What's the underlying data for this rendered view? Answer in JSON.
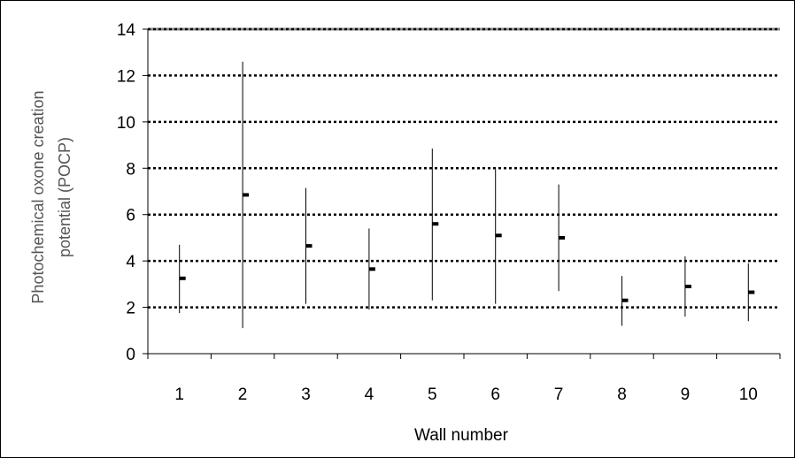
{
  "chart_data": {
    "type": "range",
    "title": "",
    "xlabel": "Wall number",
    "ylabel": [
      "Photochemical oxone creation",
      "potential (POCP)"
    ],
    "categories": [
      "1",
      "2",
      "3",
      "4",
      "5",
      "6",
      "7",
      "8",
      "9",
      "10"
    ],
    "series": [
      {
        "mean": [
          3.25,
          6.85,
          4.65,
          3.65,
          5.6,
          5.1,
          5.0,
          2.3,
          2.9,
          2.65
        ],
        "min": [
          1.75,
          1.1,
          2.15,
          1.9,
          2.3,
          2.15,
          2.7,
          1.2,
          1.6,
          1.4
        ],
        "max": [
          4.7,
          12.6,
          7.15,
          5.4,
          8.85,
          7.95,
          7.3,
          3.35,
          4.2,
          3.9
        ]
      }
    ],
    "yticks": [
      "0",
      "2",
      "4",
      "6",
      "8",
      "10",
      "12",
      "14"
    ],
    "ylim": [
      0,
      14
    ],
    "grid": "horizontal-dotted",
    "legend": "none",
    "colors": {
      "line": "#000000",
      "grid": "#000000",
      "background": "#ffffff",
      "ylabel": "#555555"
    }
  }
}
